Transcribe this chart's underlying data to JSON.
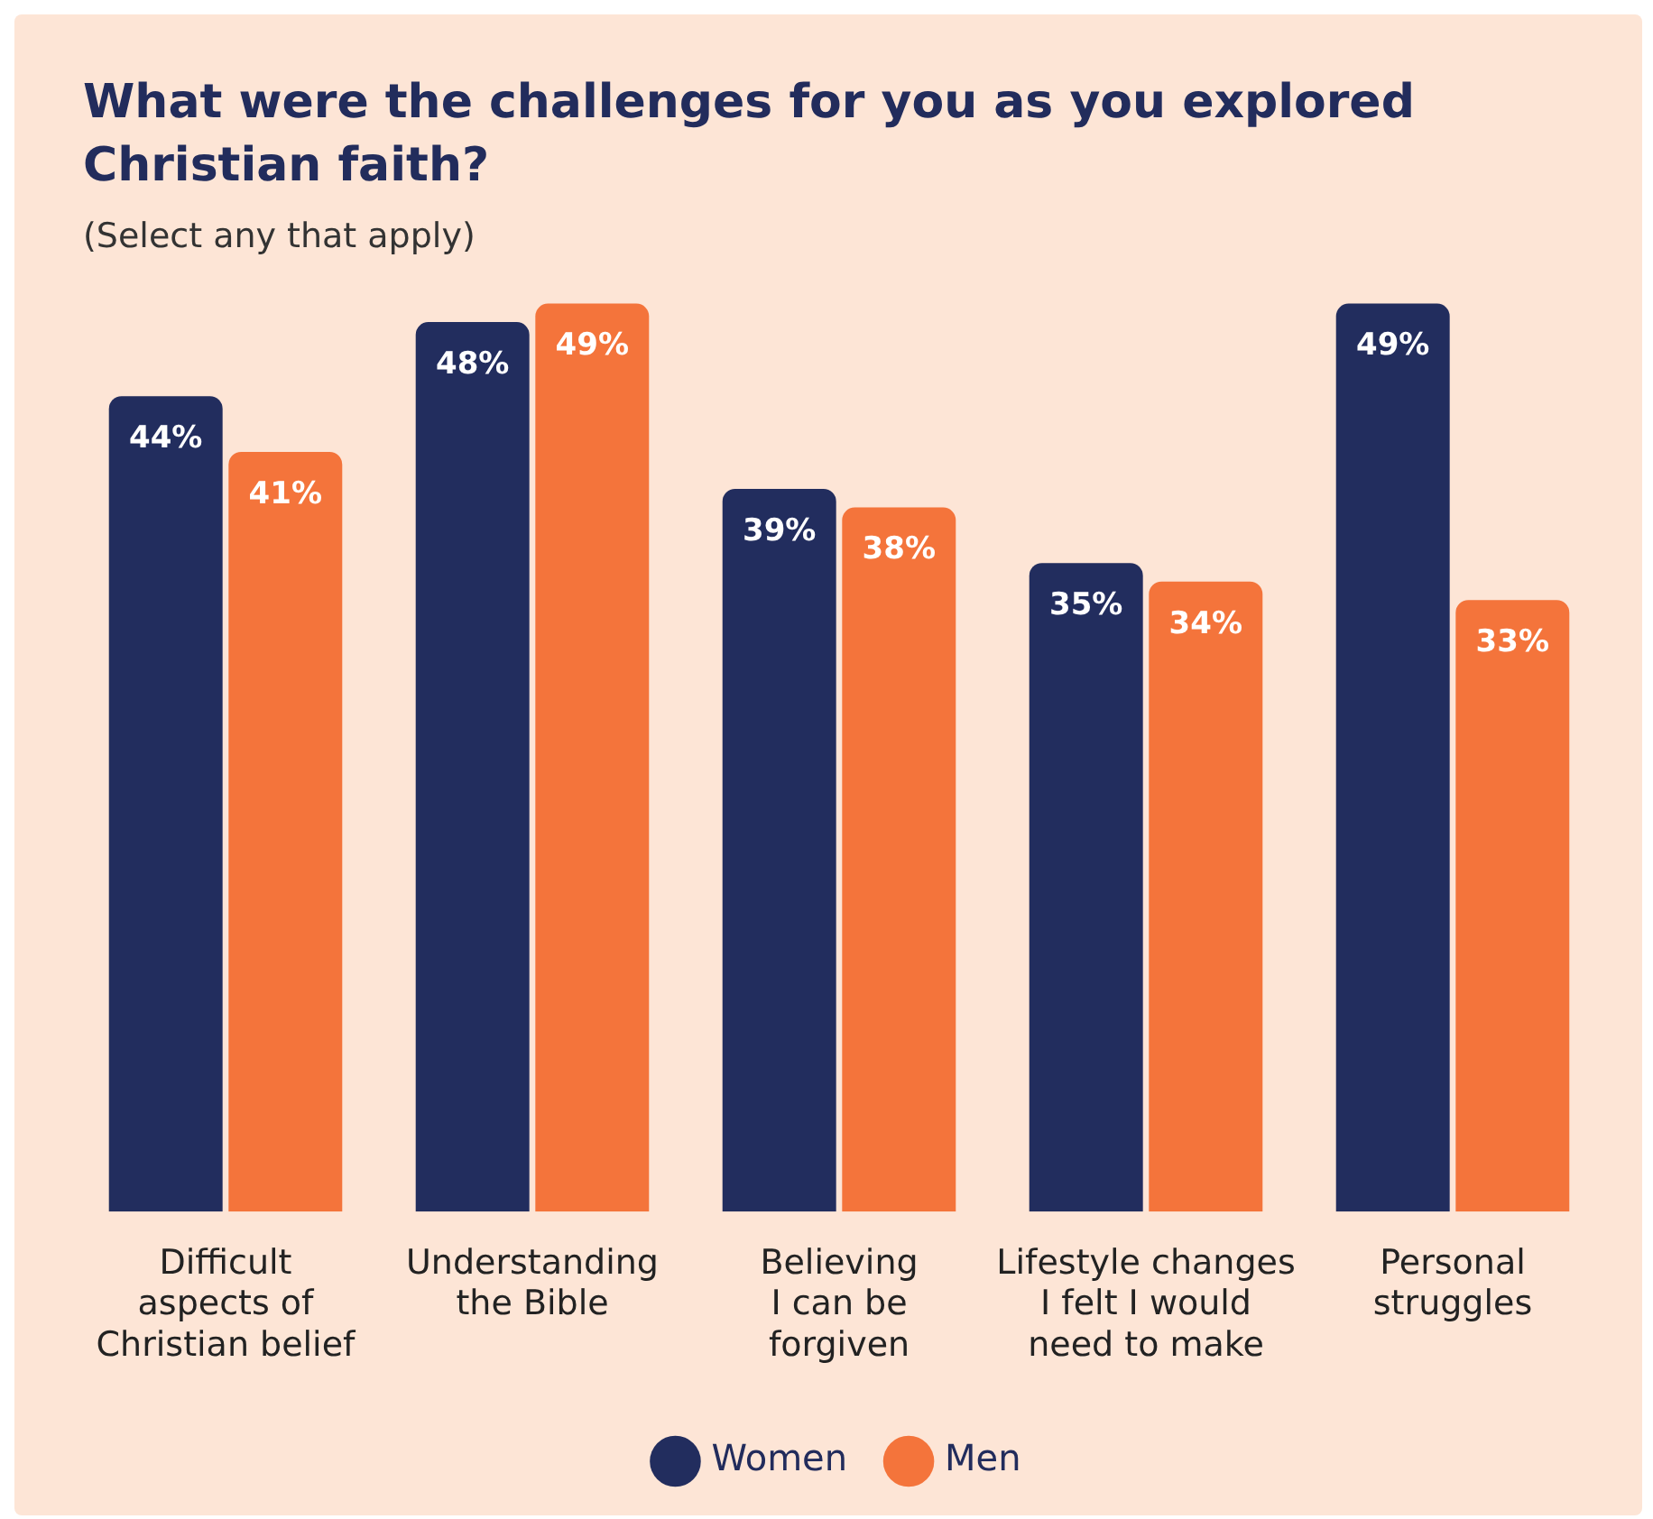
{
  "chart_data": {
    "type": "bar",
    "title": "What were the challenges for you as you explored Christian faith?",
    "subtitle": "(Select any that apply)",
    "categories": [
      "Difficult\naspects of\nChristian belief",
      "Understanding\nthe Bible",
      "Believing\nI can be\nforgiven",
      "Lifestyle changes\nI felt I would\nneed to make",
      "Personal\nstruggles"
    ],
    "series": [
      {
        "name": "Women",
        "color": "#222d5e",
        "values": [
          44,
          48,
          39,
          35,
          49
        ],
        "value_labels": [
          "44%",
          "48%",
          "39%",
          "35%",
          "49%"
        ]
      },
      {
        "name": "Men",
        "color": "#f4743b",
        "values": [
          41,
          49,
          38,
          34,
          33
        ],
        "value_labels": [
          "41%",
          "49%",
          "38%",
          "34%",
          "33%"
        ]
      }
    ],
    "legend": "bottom",
    "grid": false
  }
}
